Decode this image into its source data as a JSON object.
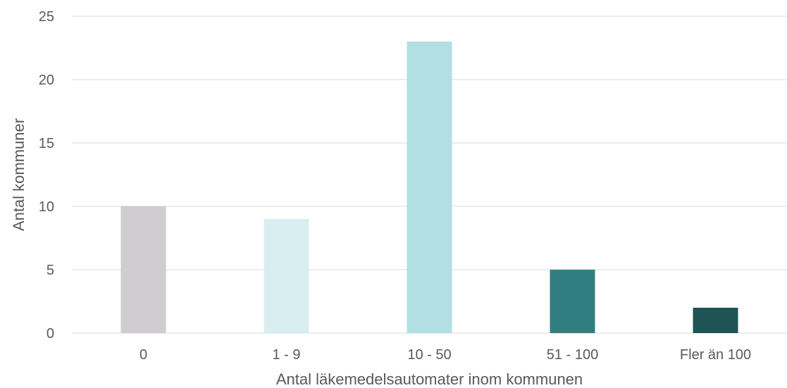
{
  "chart_data": {
    "type": "bar",
    "categories": [
      "0",
      "1 - 9",
      "10 - 50",
      "51 - 100",
      "Fler än 100"
    ],
    "values": [
      10,
      9,
      23,
      5,
      2
    ],
    "bar_colors": [
      "#cfcdcf",
      "#d9eef1",
      "#b2dfe2",
      "#317e80",
      "#1f5456"
    ],
    "xlabel": "Antal läkemedelsautomater inom kommunen",
    "ylabel": "Antal kommuner",
    "ylim": [
      0,
      25
    ],
    "yticks": [
      0,
      5,
      10,
      15,
      20,
      25
    ],
    "grid": true,
    "legend": false
  }
}
